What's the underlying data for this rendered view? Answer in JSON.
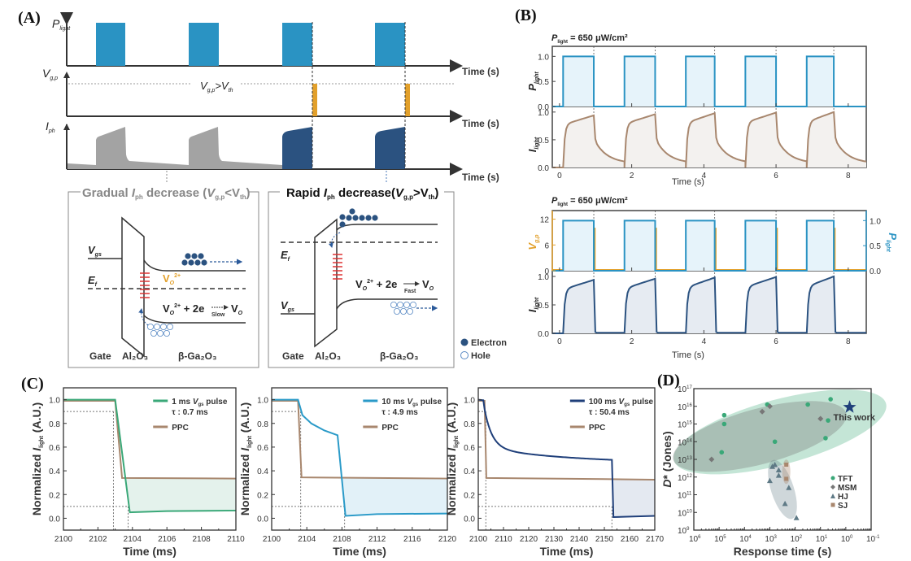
{
  "panels": {
    "A": {
      "label": "(A)",
      "axis_labels": {
        "p_light": "P",
        "p_light_sub": "light",
        "vgp": "V",
        "vgp_sub": "g,p",
        "iph": "I",
        "iph_sub": "ph",
        "time": "Time (s)"
      },
      "threshold_label": {
        "v": "V",
        "sub1": "g,p",
        "gt": ">V",
        "sub2": "th"
      },
      "colors": {
        "light": "#2a93c3",
        "vgp": "#e2a02b",
        "gradual": "#a3a3a3",
        "rapid": "#2b5280"
      },
      "box_gradual": {
        "title_pre": "Gradual ",
        "title_I": "I",
        "title_ph": "ph",
        "title_mid": " decrease (",
        "title_V": "V",
        "title_gp": "g,p",
        "title_lt": "<V",
        "title_th": "th",
        "title_end": ")",
        "vgs": "V",
        "vgs_sub": "gs",
        "ef": "E",
        "ef_sub": "f",
        "vo": "V",
        "vo_sub": "O",
        "vo_sup": "2+",
        "reaction": "V",
        "reaction_sub": "O",
        "reaction_sup": "2+",
        "reaction_mid": " + 2e",
        "reaction_speed": "Slow",
        "reaction_prod": "V",
        "reaction_prod_sub": "O",
        "gate": "Gate",
        "oxide": "Al₂O₃",
        "semi": "β-Ga₂O₃"
      },
      "box_rapid": {
        "title_pre": "Rapid ",
        "title_I": "I",
        "title_ph": "ph",
        "title_mid": " decrease(",
        "title_V": "V",
        "title_gp": "g,p",
        "title_gt": ">V",
        "title_th": "th",
        "title_end": ")",
        "vgs": "V",
        "vgs_sub": "gs",
        "ef": "E",
        "ef_sub": "f",
        "reaction": "V",
        "reaction_sub": "O",
        "reaction_sup": "2+",
        "reaction_mid": " + 2e",
        "reaction_speed": "Fast",
        "reaction_prod": "V",
        "reaction_prod_sub": "O",
        "gate": "Gate",
        "oxide": "Al₂O₃",
        "semi": "β-Ga₂O₃"
      },
      "legend": {
        "electron": "Electron",
        "hole": "Hole"
      }
    },
    "B": {
      "label": "(B)",
      "top": {
        "title": "P",
        "title_sub": "light",
        "title_rest": " = 650 μW/cm²",
        "ylabel_top": "P",
        "ylabel_top_sub": "light",
        "ylabel_bottom": "I",
        "ylabel_bottom_sub": "light",
        "xlabel": "Time (s)"
      },
      "bottom": {
        "title": "P",
        "title_sub": "light",
        "title_rest": " = 650 μW/cm²",
        "ylabel_left": "V",
        "ylabel_left_sub": "g,p",
        "ylabel_right": "P",
        "ylabel_right_sub": "light",
        "ylabel_bottom": "I",
        "ylabel_bottom_sub": "light",
        "xlabel": "Time (s)"
      }
    },
    "C": {
      "label": "(C)"
    },
    "D": {
      "label": "(D)"
    }
  },
  "chart_data": [
    {
      "id": "B-top",
      "type": "line",
      "title": "P_light = 650 μW/cm²",
      "xlabel": "Time (s)",
      "xlim": [
        -0.2,
        8.5
      ],
      "xticks": [
        0,
        2,
        4,
        6,
        8
      ],
      "pulses_on": [
        [
          0.1,
          0.95
        ],
        [
          1.8,
          2.65
        ],
        [
          3.5,
          4.3
        ],
        [
          5.15,
          6.0
        ],
        [
          6.85,
          7.6
        ]
      ],
      "series": [
        {
          "name": "P_light",
          "ylabel": "P_light",
          "ylim": [
            0,
            1.2
          ],
          "yticks": [
            0.0,
            0.5,
            1.0
          ],
          "color": "#2a93c3",
          "on_value": 1.0
        },
        {
          "name": "I_light",
          "ylabel": "I_light",
          "ylim": [
            0,
            1.1
          ],
          "yticks": [
            0.0,
            0.5,
            1.0
          ],
          "color": "#a8876e",
          "peak_values": [
            0.94,
            0.96,
            0.98,
            0.99,
            1.0
          ],
          "decay_to": 0.07,
          "mode": "slow-decay"
        }
      ]
    },
    {
      "id": "B-bottom",
      "type": "line",
      "title": "P_light = 650 μW/cm²",
      "xlabel": "Time (s)",
      "xlim": [
        -0.2,
        8.5
      ],
      "xticks": [
        0,
        2,
        4,
        6,
        8
      ],
      "pulses_on": [
        [
          0.1,
          0.95
        ],
        [
          1.8,
          2.65
        ],
        [
          3.5,
          4.3
        ],
        [
          5.15,
          6.0
        ],
        [
          6.85,
          7.6
        ]
      ],
      "series": [
        {
          "name": "V_g,p",
          "ylabel": "V_g,p",
          "ylim": [
            0,
            14
          ],
          "yticks": [
            0,
            6,
            12
          ],
          "color": "#e2a02b",
          "pulse_value": 10,
          "pulse_width": 0.05
        },
        {
          "name": "P_light",
          "ylabel": "P_light",
          "axis": "right",
          "ylim": [
            0,
            1.2
          ],
          "yticks": [
            0.0,
            0.5,
            1.0
          ],
          "color": "#2a93c3",
          "on_value": 1.0
        },
        {
          "name": "I_light",
          "ylabel": "I_light",
          "ylim": [
            0,
            1.1
          ],
          "yticks": [
            0.0,
            0.5,
            1.0
          ],
          "color": "#2b5280",
          "peak_values": [
            0.94,
            0.96,
            0.98,
            0.99,
            1.0
          ],
          "decay_to": 0.01,
          "mode": "fast-decay"
        }
      ]
    },
    {
      "id": "C1",
      "type": "line",
      "xlabel": "Time (ms)",
      "ylabel": "Normalized I_light (A.U.)",
      "xlim": [
        2100,
        2110
      ],
      "xticks": [
        2100,
        2102,
        2104,
        2106,
        2108,
        2110
      ],
      "ylim": [
        -0.1,
        1.1
      ],
      "yticks": [
        0.0,
        0.2,
        0.4,
        0.6,
        0.8,
        1.0
      ],
      "legend": [
        {
          "name": "1 ms V_gs pulse",
          "extra": "τ : 0.7 ms",
          "color": "#3aa878"
        },
        {
          "name": "PPC",
          "color": "#a8876e"
        }
      ],
      "series": [
        {
          "name": "1 ms V_gs pulse",
          "color": "#3aa878",
          "fill": "#e4f2ec",
          "points": [
            [
              2100,
              1.0
            ],
            [
              2103,
              1.0
            ],
            [
              2103.85,
              0.05
            ],
            [
              2106,
              0.06
            ],
            [
              2110,
              0.065
            ]
          ]
        },
        {
          "name": "PPC",
          "color": "#a8876e",
          "points": [
            [
              2100,
              0.99
            ],
            [
              2103,
              0.99
            ],
            [
              2103.4,
              0.34
            ],
            [
              2110,
              0.335
            ]
          ]
        }
      ],
      "ref_lines": {
        "y": [
          0.9,
          0.1
        ],
        "x": [
          2102.9,
          2103.75
        ]
      }
    },
    {
      "id": "C2",
      "type": "line",
      "xlabel": "Time (ms)",
      "ylabel": "Normalized I_light (A.U.)",
      "xlim": [
        2100,
        2120
      ],
      "xticks": [
        2100,
        2104,
        2108,
        2112,
        2116,
        2120
      ],
      "ylim": [
        -0.1,
        1.1
      ],
      "yticks": [
        0.0,
        0.2,
        0.4,
        0.6,
        0.8,
        1.0
      ],
      "legend": [
        {
          "name": "10 ms V_gs pulse",
          "extra": "τ : 4.9 ms",
          "color": "#2a9ac8"
        },
        {
          "name": "PPC",
          "color": "#a8876e"
        }
      ],
      "series": [
        {
          "name": "10 ms V_gs pulse",
          "color": "#2a9ac8",
          "fill": "#e2f1f8",
          "points": [
            [
              2100,
              1.0
            ],
            [
              2103,
              1.0
            ],
            [
              2103.5,
              0.87
            ],
            [
              2104.5,
              0.8
            ],
            [
              2106,
              0.74
            ],
            [
              2107.5,
              0.7
            ],
            [
              2108.4,
              0.02
            ],
            [
              2112,
              0.035
            ],
            [
              2120,
              0.04
            ]
          ]
        },
        {
          "name": "PPC",
          "color": "#a8876e",
          "points": [
            [
              2100,
              0.99
            ],
            [
              2103,
              0.99
            ],
            [
              2103.4,
              0.345
            ],
            [
              2120,
              0.335
            ]
          ]
        }
      ],
      "ref_lines": {
        "y": [
          0.9,
          0.1
        ],
        "x": [
          2103.3,
          2108.3
        ]
      }
    },
    {
      "id": "C3",
      "type": "line",
      "xlabel": "Time (ms)",
      "ylabel": "Normalized I_light (A.U.)",
      "xlim": [
        2100,
        2170
      ],
      "xticks": [
        2100,
        2110,
        2120,
        2130,
        2140,
        2150,
        2160,
        2170
      ],
      "ylim": [
        -0.1,
        1.1
      ],
      "yticks": [
        0.0,
        0.2,
        0.4,
        0.6,
        0.8,
        1.0
      ],
      "legend": [
        {
          "name": "100 ms V_gs pulse",
          "extra": "τ : 50.4 ms",
          "color": "#1f3f7a"
        },
        {
          "name": "PPC",
          "color": "#a8876e"
        }
      ],
      "series": [
        {
          "name": "100 ms V_gs pulse",
          "color": "#1f3f7a",
          "fill": "#e4e9f1",
          "points": [
            [
              2100,
              1.0
            ],
            [
              2102,
              0.99
            ],
            [
              2103,
              0.85
            ],
            [
              2105,
              0.74
            ],
            [
              2110,
              0.65
            ],
            [
              2120,
              0.59
            ],
            [
              2130,
              0.56
            ],
            [
              2140,
              0.54
            ],
            [
              2153,
              0.52
            ],
            [
              2153.8,
              0.01
            ],
            [
              2170,
              0.02
            ]
          ]
        },
        {
          "name": "PPC",
          "color": "#a8876e",
          "points": [
            [
              2100,
              0.99
            ],
            [
              2102.5,
              0.99
            ],
            [
              2103.2,
              0.34
            ],
            [
              2150,
              0.33
            ],
            [
              2170,
              0.325
            ]
          ]
        }
      ],
      "ref_lines": {
        "y": [
          0.9,
          0.1
        ],
        "x": [
          2103,
          2153
        ]
      }
    },
    {
      "id": "D",
      "type": "scatter",
      "xlabel": "Response time (s)",
      "ylabel": "D* (Jones)",
      "x_log_exponents": [
        6,
        5,
        4,
        3,
        2,
        1,
        0,
        -1
      ],
      "y_log_exponents": [
        9,
        10,
        11,
        12,
        13,
        14,
        15,
        16,
        17
      ],
      "x_scale": "log-reversed",
      "y_scale": "log",
      "legend_position": "bottom-right",
      "annotation": "This work",
      "series": [
        {
          "name": "TFT",
          "color": "#3aa878",
          "marker": "circle",
          "points": [
            [
              4.8,
              15.5
            ],
            [
              4.8,
              15.0
            ],
            [
              4.9,
              13.4
            ],
            [
              3.1,
              16.1
            ],
            [
              1.5,
              16.1
            ],
            [
              0.6,
              16.4
            ],
            [
              0.7,
              15.2
            ],
            [
              0.8,
              14.2
            ],
            [
              2.8,
              14.0
            ]
          ]
        },
        {
          "name": "MSM",
          "color": "#777777",
          "marker": "diamond",
          "points": [
            [
              5.3,
              13.0
            ],
            [
              3.3,
              15.7
            ],
            [
              3.0,
              16.0
            ],
            [
              1.0,
              15.3
            ]
          ]
        },
        {
          "name": "HJ",
          "color": "#5f7a86",
          "marker": "triangle",
          "points": [
            [
              3.0,
              11.8
            ],
            [
              2.9,
              12.6
            ],
            [
              2.8,
              12.7
            ],
            [
              2.65,
              12.4
            ],
            [
              2.65,
              12.1
            ],
            [
              2.4,
              10.5
            ],
            [
              2.25,
              11.4
            ],
            [
              1.95,
              9.7
            ]
          ]
        },
        {
          "name": "SJ",
          "color": "#a8876e",
          "marker": "square",
          "points": [
            [
              2.35,
              12.7
            ],
            [
              2.35,
              11.9
            ]
          ]
        },
        {
          "name": "This work",
          "color": "#1f3f7a",
          "marker": "star",
          "points": [
            [
              -0.15,
              15.95
            ]
          ]
        }
      ]
    }
  ]
}
